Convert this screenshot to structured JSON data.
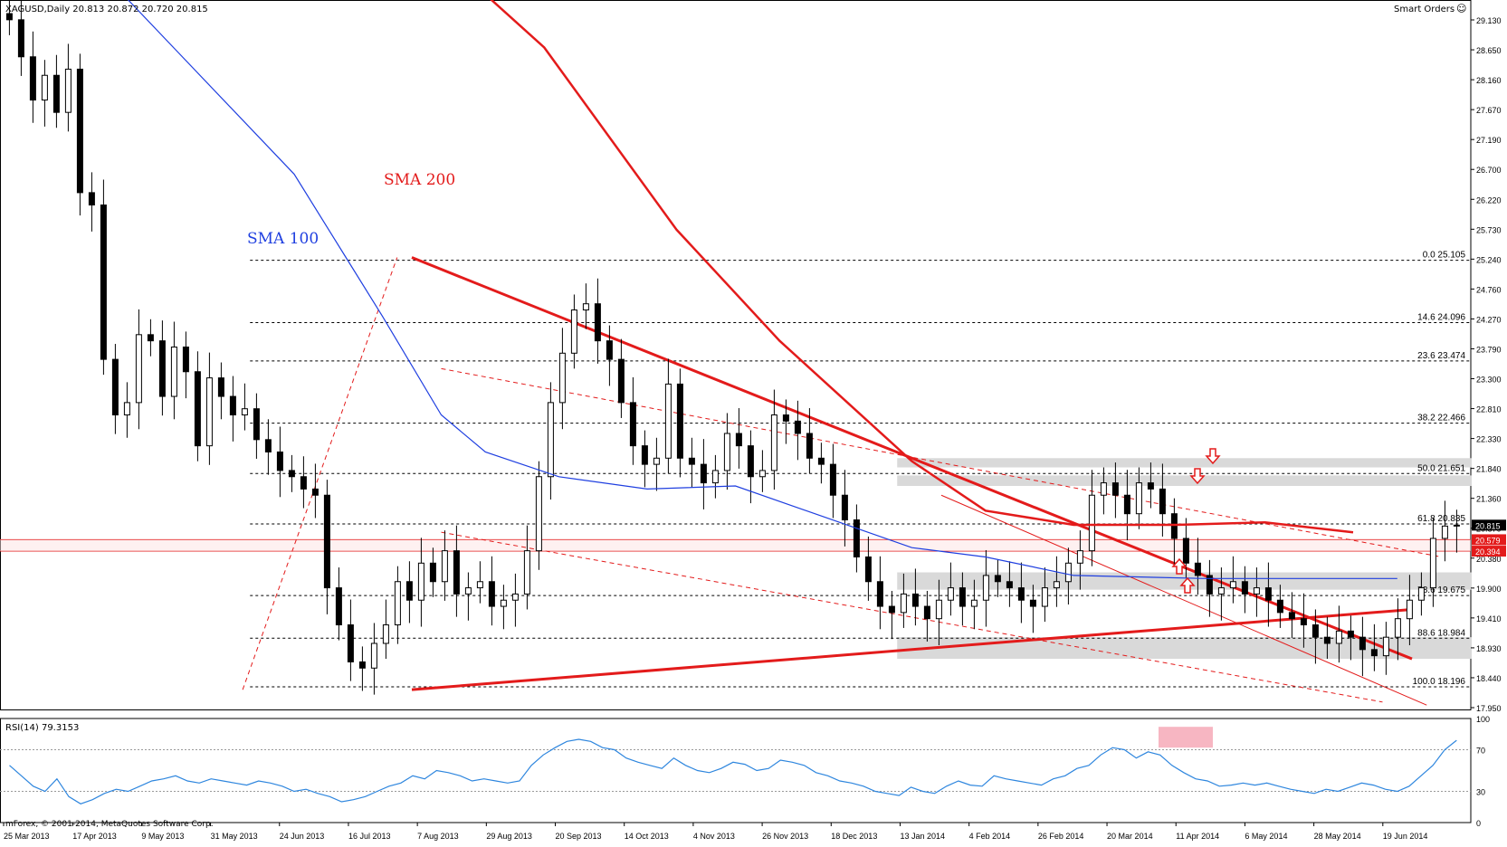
{
  "header": {
    "symbol_line": "XAGUSD,Daily  20.813 20.872 20.720 20.815",
    "smart_orders": "Smart Orders"
  },
  "rsi_header": "RSI(14) 79.3153",
  "copyright": "mForex, © 2001-2014, MetaQuotes Software Corp.",
  "annotations": {
    "sma200": "SMA 200",
    "sma100": "SMA 100"
  },
  "colors": {
    "sma200": "#e31b1b",
    "sma100": "#1f3fe0",
    "candles": "#000000",
    "trendlines": "#e31b1b",
    "rsi_line": "#2e86de",
    "zone_fill": "#d9d9d9",
    "rsi_highlight": "#f7b6c2",
    "price_bg": "#000000"
  },
  "chart_data": {
    "type": "candlestick",
    "title": "XAGUSD,Daily",
    "x_ticks": [
      "25 Mar 2013",
      "17 Apr 2013",
      "9 May 2013",
      "31 May 2013",
      "24 Jun 2013",
      "16 Jul 2013",
      "7 Aug 2013",
      "29 Aug 2013",
      "20 Sep 2013",
      "14 Oct 2013",
      "4 Nov 2013",
      "26 Nov 2013",
      "18 Dec 2013",
      "13 Jan 2014",
      "4 Feb 2014",
      "26 Feb 2014",
      "20 Mar 2014",
      "11 Apr 2014",
      "6 May 2014",
      "28 May 2014",
      "19 Jun 2014"
    ],
    "y_ticks": [
      "29.130",
      "28.650",
      "28.160",
      "27.670",
      "27.190",
      "26.700",
      "26.220",
      "25.730",
      "25.240",
      "24.760",
      "24.270",
      "23.790",
      "23.300",
      "22.810",
      "22.330",
      "21.840",
      "21.360",
      "20.870",
      "20.380",
      "19.900",
      "19.410",
      "18.930",
      "18.440",
      "17.950"
    ],
    "ylim": [
      17.83,
      29.32
    ],
    "current_price": "20.815",
    "price_labels": [
      "20.579",
      "20.394"
    ],
    "fibonacci": [
      {
        "level": "0.0",
        "price": "25.105",
        "value": 25.105
      },
      {
        "level": "14.6",
        "price": "24.096",
        "value": 24.096
      },
      {
        "level": "23.6",
        "price": "23.474",
        "value": 23.474
      },
      {
        "level": "38.2",
        "price": "22.466",
        "value": 22.466
      },
      {
        "level": "50.0",
        "price": "21.651",
        "value": 21.651
      },
      {
        "level": "61.8",
        "price": "20.835",
        "value": 20.835
      },
      {
        "level": "78.6",
        "price": "19.675",
        "value": 19.675
      },
      {
        "level": "88.6",
        "price": "18.984",
        "value": 18.984
      },
      {
        "level": "100.0",
        "price": "18.196",
        "value": 18.196
      }
    ],
    "support_resistance_lines": [
      20.579,
      20.394
    ],
    "zones": [
      [
        21.75,
        21.9
      ],
      [
        21.45,
        21.62
      ],
      [
        19.77,
        20.05
      ],
      [
        18.65,
        19.0
      ]
    ],
    "closes": [
      29.0,
      28.4,
      27.7,
      28.1,
      27.5,
      28.2,
      26.2,
      26.0,
      23.5,
      22.6,
      22.8,
      23.9,
      23.8,
      22.9,
      23.7,
      23.3,
      22.1,
      23.2,
      22.9,
      22.6,
      22.7,
      22.2,
      22.0,
      21.7,
      21.6,
      21.4,
      21.3,
      19.8,
      19.2,
      18.6,
      18.5,
      18.9,
      19.2,
      19.9,
      19.6,
      20.2,
      19.9,
      20.4,
      19.7,
      19.8,
      19.9,
      19.5,
      19.6,
      19.7,
      20.4,
      21.6,
      22.8,
      23.6,
      24.3,
      24.4,
      23.8,
      23.5,
      22.8,
      22.1,
      21.8,
      21.9,
      23.1,
      21.9,
      21.8,
      21.5,
      21.7,
      22.3,
      22.1,
      21.6,
      21.7,
      22.6,
      22.5,
      22.3,
      21.9,
      21.8,
      21.3,
      20.9,
      20.3,
      19.9,
      19.5,
      19.4,
      19.7,
      19.5,
      19.3,
      19.6,
      19.8,
      19.5,
      19.6,
      20.0,
      19.9,
      19.8,
      19.6,
      19.5,
      19.8,
      19.9,
      20.2,
      20.4,
      21.3,
      21.5,
      21.3,
      21.0,
      21.5,
      21.4,
      21.0,
      20.6,
      20.2,
      20.0,
      19.7,
      19.8,
      19.9,
      19.7,
      19.8,
      19.6,
      19.4,
      19.3,
      19.2,
      19.0,
      18.9,
      19.1,
      19.0,
      18.8,
      18.7,
      19.0,
      19.3,
      19.6,
      19.8,
      20.6,
      20.8,
      20.815
    ],
    "sma200_points": [
      [
        0.27,
        30.7
      ],
      [
        0.37,
        28.55
      ],
      [
        0.46,
        25.6
      ],
      [
        0.53,
        23.8
      ],
      [
        0.62,
        21.85
      ],
      [
        0.67,
        21.05
      ],
      [
        0.73,
        20.82
      ],
      [
        0.8,
        20.82
      ],
      [
        0.86,
        20.86
      ],
      [
        0.92,
        20.7
      ]
    ],
    "sma100_points": [
      [
        0.06,
        30.0
      ],
      [
        0.12,
        28.5
      ],
      [
        0.2,
        26.5
      ],
      [
        0.26,
        24.2
      ],
      [
        0.3,
        22.6
      ],
      [
        0.33,
        22.0
      ],
      [
        0.38,
        21.6
      ],
      [
        0.44,
        21.4
      ],
      [
        0.5,
        21.45
      ],
      [
        0.56,
        20.95
      ],
      [
        0.62,
        20.45
      ],
      [
        0.67,
        20.3
      ],
      [
        0.73,
        20.0
      ],
      [
        0.82,
        19.95
      ],
      [
        0.95,
        19.95
      ]
    ],
    "rsi": {
      "period": 14,
      "value": 79.3153,
      "levels": [
        70,
        30
      ],
      "y_ticks": [
        "100",
        "70",
        "30",
        "0"
      ],
      "series": [
        55,
        45,
        35,
        30,
        42,
        25,
        18,
        22,
        28,
        32,
        30,
        35,
        40,
        42,
        45,
        40,
        38,
        42,
        40,
        38,
        36,
        40,
        38,
        35,
        30,
        32,
        28,
        25,
        20,
        22,
        25,
        30,
        35,
        38,
        45,
        42,
        50,
        48,
        45,
        40,
        42,
        40,
        38,
        40,
        55,
        65,
        72,
        78,
        80,
        78,
        72,
        70,
        62,
        58,
        55,
        52,
        62,
        55,
        50,
        48,
        52,
        58,
        56,
        50,
        52,
        60,
        58,
        55,
        48,
        45,
        40,
        38,
        35,
        30,
        28,
        26,
        34,
        30,
        28,
        35,
        40,
        36,
        35,
        45,
        42,
        40,
        38,
        36,
        42,
        45,
        52,
        55,
        65,
        72,
        70,
        62,
        68,
        65,
        55,
        48,
        42,
        40,
        35,
        36,
        38,
        36,
        38,
        35,
        32,
        30,
        28,
        32,
        30,
        34,
        38,
        36,
        32,
        30,
        35,
        45,
        55,
        70,
        79
      ]
    }
  }
}
